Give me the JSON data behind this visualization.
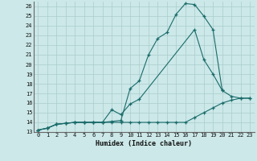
{
  "xlabel": "Humidex (Indice chaleur)",
  "xlim": [
    -0.5,
    23.5
  ],
  "ylim": [
    13,
    26.5
  ],
  "yticks": [
    13,
    14,
    15,
    16,
    17,
    18,
    19,
    20,
    21,
    22,
    23,
    24,
    25,
    26
  ],
  "xticks": [
    0,
    1,
    2,
    3,
    4,
    5,
    6,
    7,
    8,
    9,
    10,
    11,
    12,
    13,
    14,
    15,
    16,
    17,
    18,
    19,
    20,
    21,
    22,
    23
  ],
  "bg_color": "#cce8e8",
  "line_color": "#1a6b6b",
  "grid_color": "#aacccc",
  "line1_x": [
    0,
    1,
    2,
    3,
    4,
    5,
    6,
    7,
    8,
    9,
    10,
    11,
    12,
    13,
    14,
    15,
    16,
    17,
    18,
    19,
    20
  ],
  "line1_y": [
    13.2,
    13.4,
    13.8,
    13.9,
    14.0,
    14.0,
    14.0,
    14.0,
    14.1,
    14.2,
    17.5,
    18.3,
    21.0,
    22.7,
    23.3,
    25.2,
    26.3,
    26.2,
    25.0,
    23.6,
    17.3
  ],
  "line2_x": [
    0,
    1,
    2,
    3,
    4,
    5,
    6,
    7,
    8,
    9,
    10,
    11,
    17,
    18,
    19,
    20,
    21,
    22,
    23
  ],
  "line2_y": [
    13.2,
    13.4,
    13.8,
    13.9,
    14.0,
    14.0,
    14.0,
    14.0,
    15.3,
    14.8,
    15.9,
    16.4,
    23.6,
    20.5,
    19.0,
    17.3,
    16.7,
    16.5,
    16.5
  ],
  "line3_x": [
    0,
    1,
    2,
    3,
    4,
    5,
    6,
    7,
    8,
    9,
    10,
    11,
    12,
    13,
    14,
    15,
    16,
    17,
    18,
    19,
    20,
    21,
    22,
    23
  ],
  "line3_y": [
    13.2,
    13.4,
    13.8,
    13.9,
    14.0,
    14.0,
    14.0,
    14.0,
    14.0,
    14.0,
    14.0,
    14.0,
    14.0,
    14.0,
    14.0,
    14.0,
    14.0,
    14.5,
    15.0,
    15.5,
    16.0,
    16.3,
    16.5,
    16.5
  ]
}
